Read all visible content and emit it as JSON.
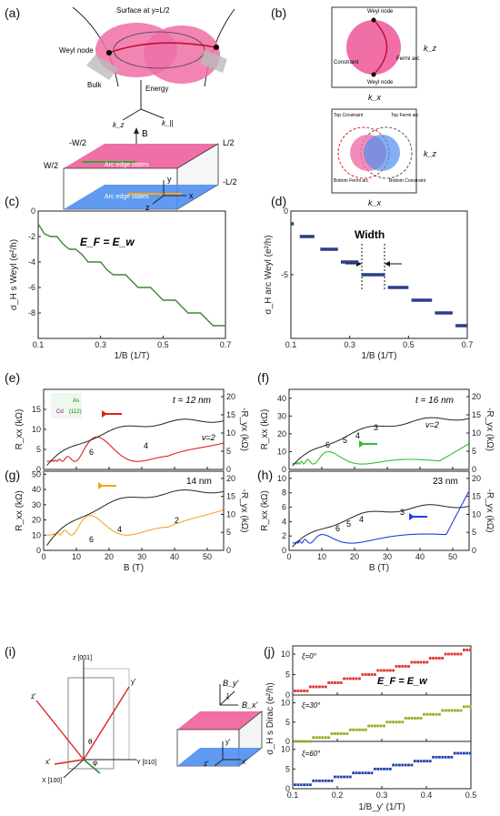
{
  "panel_labels": [
    "(a)",
    "(b)",
    "(c)",
    "(d)",
    "(e)",
    "(f)",
    "(g)",
    "(h)",
    "(i)",
    "(j)"
  ],
  "panel_a": {
    "surface": "Surface at y=L/2",
    "weyl_node": "Weyl\nnode",
    "energy": "Energy",
    "bulk": "Bulk",
    "kz": "k_z",
    "kpar": "k_||",
    "B": "B",
    "y": "y",
    "z": "z",
    "x": "x",
    "minus_w2": "-W/2",
    "w2": "W/2",
    "l2": "L/2",
    "minus_l2": "-L/2",
    "arc_top": "Arc edge states",
    "arc_bottom": "Arc edge states"
  },
  "panel_b": {
    "weyl_node_top": "Weyl\nnode",
    "constraint": "Constraint",
    "fermi_arc": "Fermi\narc",
    "weyl_node_bottom": "Weyl\nnode",
    "kz": "k_z",
    "kx": "k_x",
    "top_constraint": "Top\nConstraint",
    "top_fermi_arc": "Top\nFermi arc",
    "bottom_fermi_arc": "Bottom\nFermi arc",
    "bottom_constraint": "Bottom\nConstraint"
  },
  "panel_c": {
    "annotation": "E_F = E_w"
  },
  "panel_d": {
    "annotation": "Width"
  },
  "panel_e": {
    "thickness": "t = 12 nm",
    "nu": "ν=2",
    "plateaus": [
      "6",
      "4"
    ],
    "inset_labels": [
      "As",
      "Cd",
      "(112)"
    ]
  },
  "panel_f": {
    "thickness": "t = 16 nm",
    "nu": "ν=2",
    "plateaus": [
      "6",
      "5",
      "4",
      "3"
    ]
  },
  "panel_g": {
    "thickness": "14 nm",
    "plateaus": [
      "6",
      "4",
      "2"
    ]
  },
  "panel_h": {
    "thickness": "23 nm",
    "plateaus": [
      "6",
      "5",
      "4",
      "3"
    ]
  },
  "panel_i": {
    "z": "z [001]",
    "y": "Y [010]",
    "x": "X [100]",
    "yp": "y'",
    "zp": "z'",
    "xp": "x'",
    "theta": "θ",
    "phi": "φ",
    "By": "B_y'",
    "Bx": "B_x'",
    "xi": "ξ",
    "ypr": "y'",
    "zpr": "z'",
    "xpr": "x'"
  },
  "panel_j": {
    "xi_labels": [
      "ξ=0°",
      "ξ=30°",
      "ξ=60°"
    ],
    "annotation": "E_F = E_w"
  },
  "colors": {
    "pink": "#ef6fa6",
    "blue": "#4f8ff0",
    "green": "#3a8a2e",
    "navy": "#2a3f8a",
    "red": "#e02020",
    "lime": "#30c030",
    "orange": "#f5a623",
    "royal": "#2040e0",
    "jred": "#e03030",
    "jgreen": "#8ab020",
    "jblue": "#2040b0"
  },
  "chart_data": [
    {
      "type": "line",
      "panel": "c",
      "x": [
        0.1,
        0.12,
        0.14,
        0.16,
        0.18,
        0.2,
        0.22,
        0.24,
        0.26,
        0.28,
        0.3,
        0.32,
        0.34,
        0.36,
        0.38,
        0.4,
        0.42,
        0.44,
        0.46,
        0.48,
        0.5,
        0.52,
        0.54,
        0.56,
        0.58,
        0.6,
        0.62,
        0.64,
        0.66,
        0.68,
        0.7
      ],
      "values": [
        -1,
        -1.8,
        -2,
        -2,
        -2.6,
        -3,
        -3,
        -3.4,
        -4,
        -4,
        -4,
        -4.6,
        -5,
        -5,
        -5,
        -5.5,
        -6,
        -6,
        -6,
        -6.5,
        -7,
        -7,
        -7,
        -7.5,
        -8,
        -8,
        -8,
        -8.5,
        -9,
        -9,
        -9
      ],
      "xlabel": "1/B (1/T)",
      "ylabel": "σ_H s Weyl (e²/h)",
      "xlim": [
        0.1,
        0.7
      ],
      "ylim": [
        -10,
        0
      ],
      "xticks": [
        0.1,
        0.3,
        0.5,
        0.7
      ],
      "yticks": [
        0,
        -2,
        -4,
        -6,
        -8
      ]
    },
    {
      "type": "scatter",
      "panel": "d",
      "segments": [
        [
          0.1,
          0.11,
          -1
        ],
        [
          0.13,
          0.18,
          -2
        ],
        [
          0.2,
          0.26,
          -3
        ],
        [
          0.27,
          0.33,
          -4
        ],
        [
          0.34,
          0.42,
          -5
        ],
        [
          0.43,
          0.5,
          -6
        ],
        [
          0.51,
          0.58,
          -7
        ],
        [
          0.59,
          0.65,
          -8
        ],
        [
          0.66,
          0.7,
          -9
        ]
      ],
      "xlabel": "1/B (1/T)",
      "ylabel": "σ_H arc Weyl (e²/h)",
      "xlim": [
        0.1,
        0.7
      ],
      "ylim": [
        -10,
        0
      ],
      "xticks": [
        0.1,
        0.3,
        0.5,
        0.7
      ],
      "yticks": [
        0,
        -5
      ]
    },
    {
      "type": "line",
      "panel": "e",
      "xlim": [
        0,
        55
      ],
      "ylim_left": [
        0,
        20
      ],
      "ylim_right": [
        0,
        22
      ],
      "ylabel_left": "R_xx (kΩ)",
      "ylabel_right": "-R_yx (kΩ)",
      "xticks": [
        0,
        10,
        20,
        30,
        40,
        50
      ],
      "yticks_left": [
        0,
        5,
        10,
        15
      ],
      "yticks_right": [
        0,
        5,
        10,
        15,
        20
      ]
    },
    {
      "type": "line",
      "panel": "f",
      "xlim": [
        0,
        55
      ],
      "ylim_left": [
        0,
        45
      ],
      "ylim_right": [
        0,
        22
      ],
      "ylabel_left": "R_xx (kΩ)",
      "ylabel_right": "-R_yx (kΩ)",
      "xticks": [
        0,
        10,
        20,
        30,
        40,
        50
      ],
      "yticks_left": [
        0,
        10,
        20,
        30,
        40
      ],
      "yticks_right": [
        0,
        5,
        10,
        15,
        20
      ]
    },
    {
      "type": "line",
      "panel": "g",
      "xlim": [
        0,
        55
      ],
      "ylim_left": [
        0,
        52
      ],
      "ylim_right": [
        0,
        22
      ],
      "xlabel": "B (T)",
      "ylabel_left": "R_xx (kΩ)",
      "ylabel_right": "-R_yx (kΩ)",
      "xticks": [
        0,
        10,
        20,
        30,
        40,
        50
      ],
      "yticks_left": [
        0,
        10,
        20,
        30,
        40,
        50
      ],
      "yticks_right": [
        0,
        5,
        10,
        15,
        20
      ]
    },
    {
      "type": "line",
      "panel": "h",
      "xlim": [
        0,
        55
      ],
      "ylim_left": [
        0,
        11
      ],
      "ylim_right": [
        0,
        22
      ],
      "xlabel": "B (T)",
      "ylabel_left": "R_xx (kΩ)",
      "ylabel_right": "-R_yx (kΩ)",
      "xticks": [
        0,
        10,
        20,
        30,
        40,
        50
      ],
      "yticks_left": [
        0,
        2,
        4,
        6,
        8,
        10
      ],
      "yticks_right": [
        0,
        5,
        10,
        15,
        20
      ]
    },
    {
      "type": "scatter",
      "panel": "j",
      "xlabel": "1/B_y' (1/T)",
      "ylabel": "σ_H s Dirac (e²/h)",
      "xlim": [
        0.1,
        0.5
      ],
      "ylim": [
        0,
        12
      ],
      "xticks": [
        0.1,
        0.2,
        0.3,
        0.4,
        0.5
      ],
      "yticks": [
        0,
        5,
        10
      ]
    }
  ]
}
